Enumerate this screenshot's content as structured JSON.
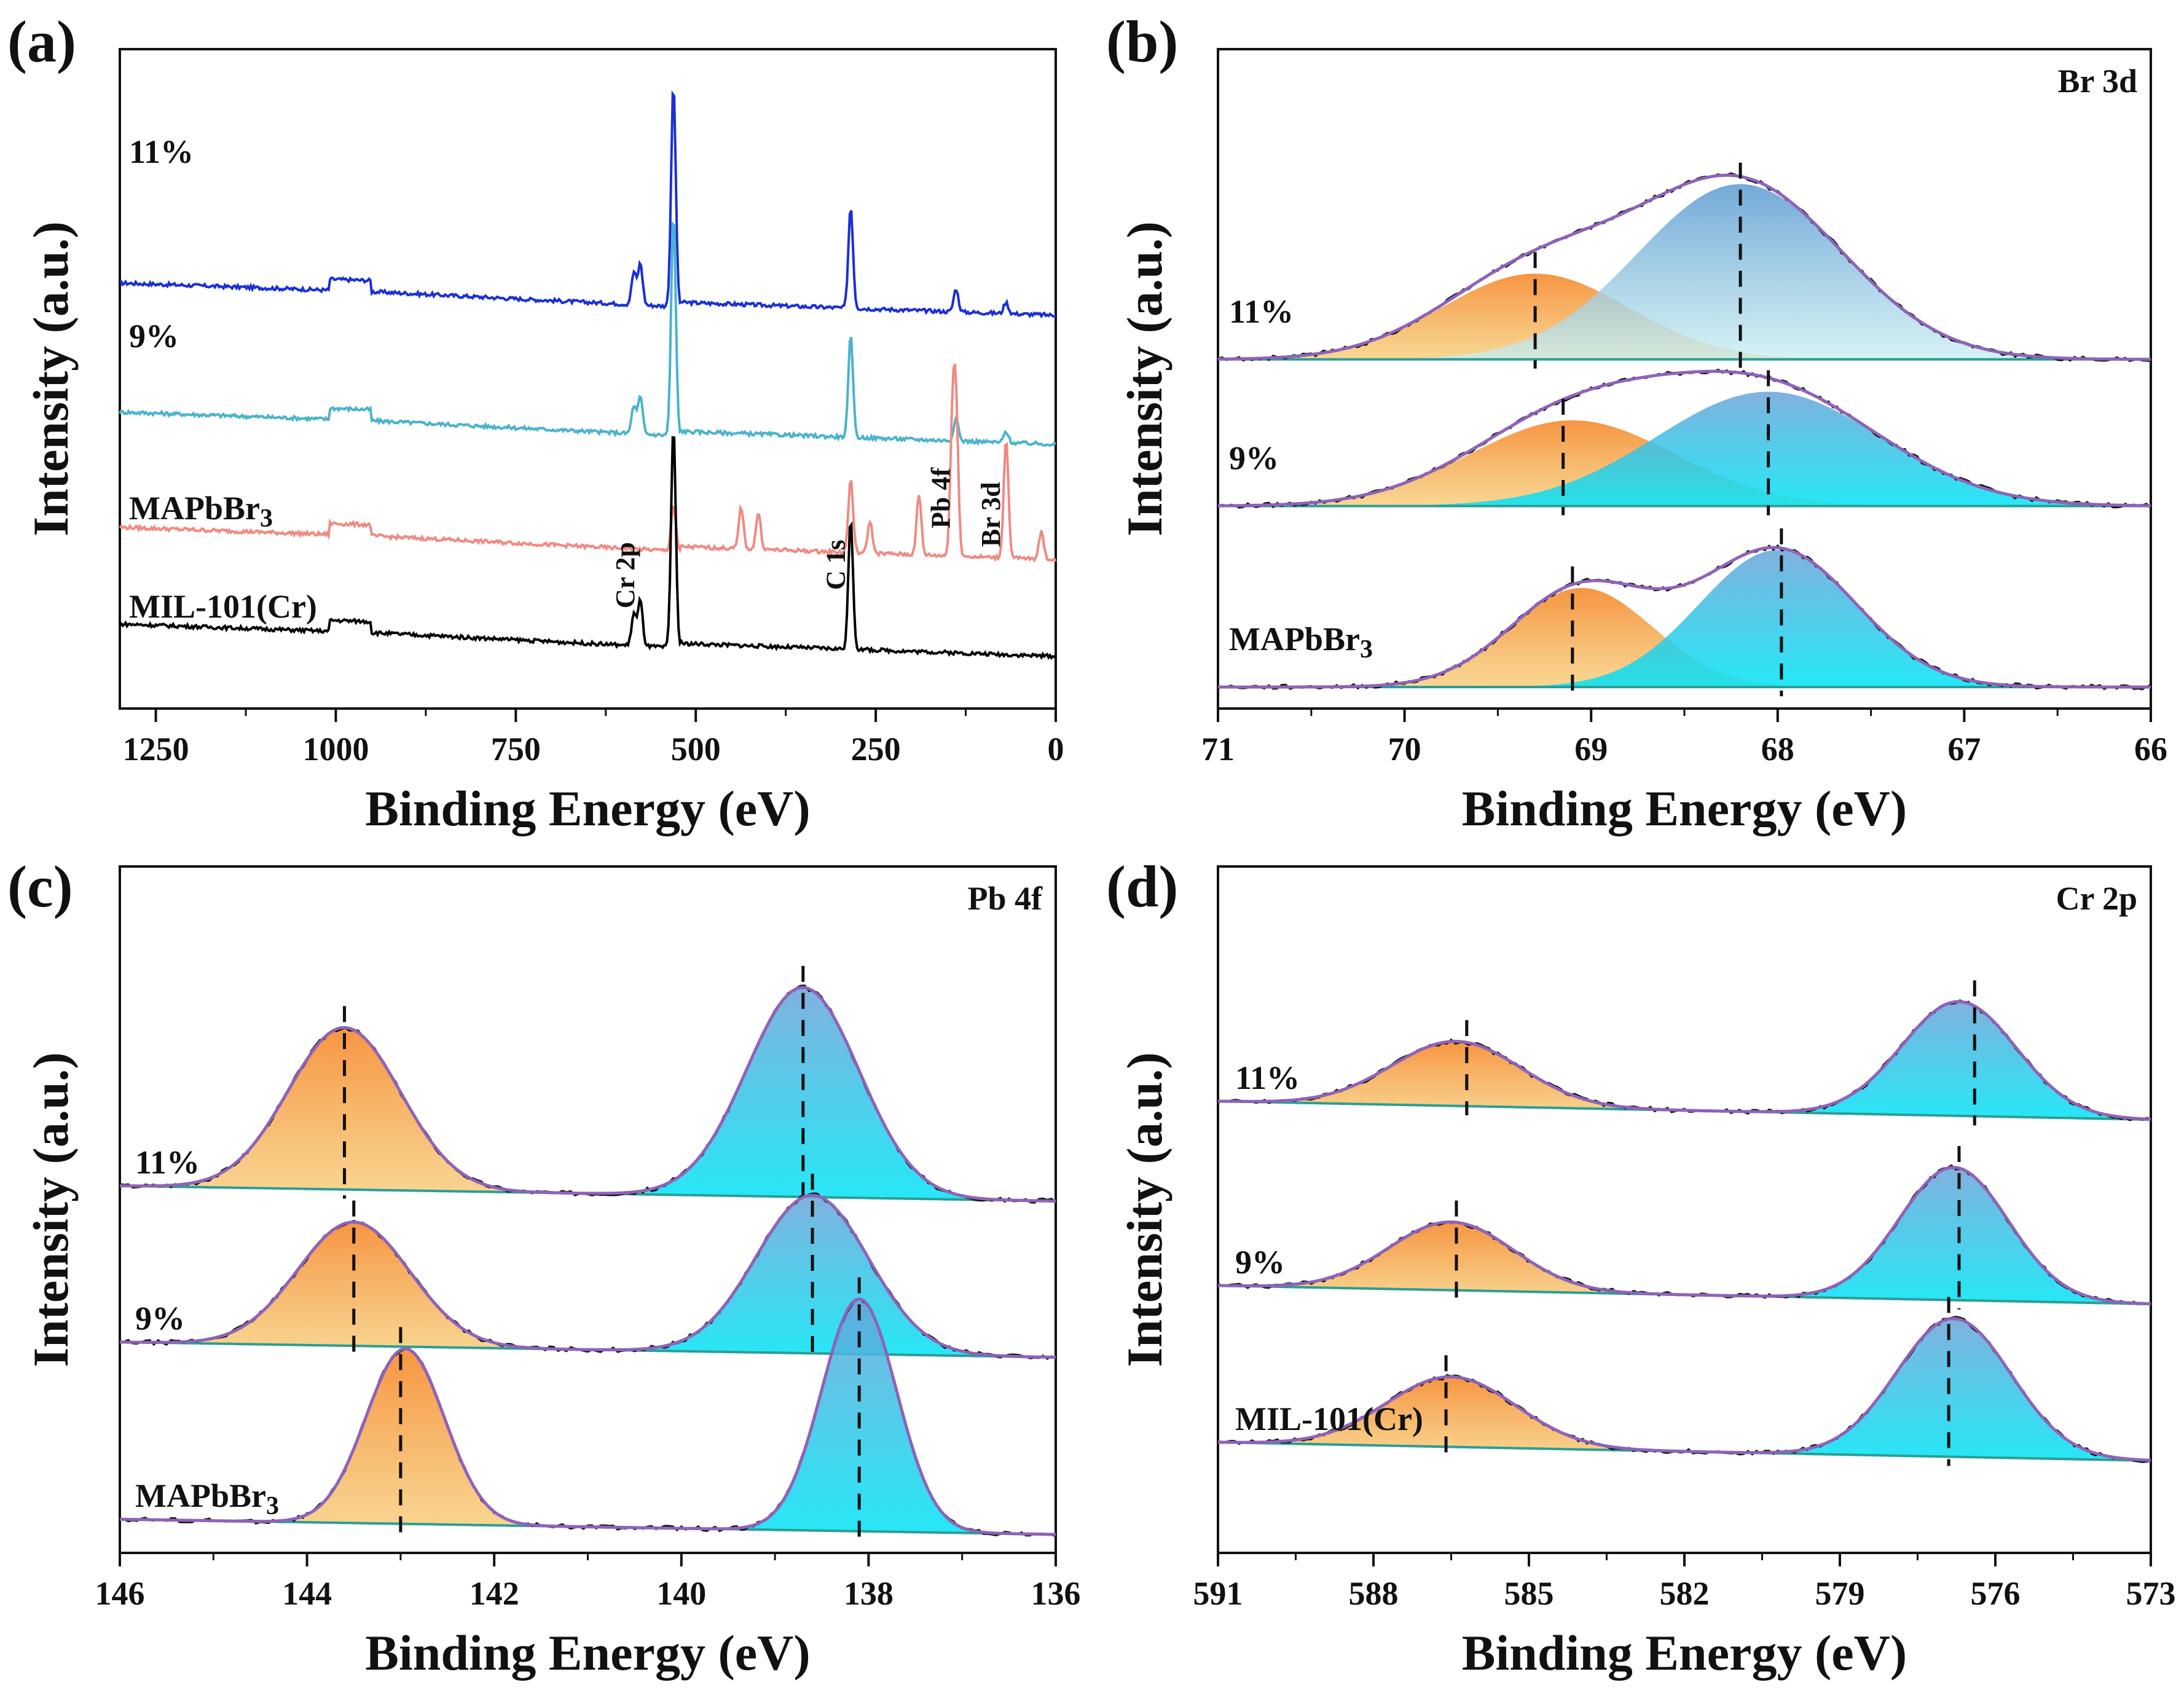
{
  "colors": {
    "orange_fill": "#f28a1c",
    "blue_fill": "#6aa7d6",
    "cyan_fill": "#12d7ee",
    "envelope": "#8e63b8",
    "baseline": "#2b9e94",
    "raw": "#101010",
    "survey_11": "#1a2fd6",
    "survey_9": "#4ab3cc",
    "survey_mapbbr3": "#ef8a82",
    "survey_mil": "#000000"
  },
  "chart_data": [
    {
      "panel": "(a)",
      "type": "line",
      "xlabel": "Binding Energy (eV)",
      "ylabel": "Intensity (a.u.)",
      "xlim": [
        1300,
        0
      ],
      "xticks": [
        "1250",
        "1000",
        "750",
        "500",
        "250",
        "0"
      ],
      "xtick_values": [
        1250,
        1000,
        750,
        500,
        250,
        0
      ],
      "series": [
        {
          "name": "11%",
          "color_key": "survey_11",
          "offset": 3.7,
          "peaks": [
            {
              "be": 531,
              "h": 2.4
            },
            {
              "be": 577,
              "h": 0.45
            },
            {
              "be": 586,
              "h": 0.35
            },
            {
              "be": 284.8,
              "h": 1.1
            },
            {
              "be": 138.5,
              "h": 0.25
            },
            {
              "be": 69,
              "h": 0.12
            }
          ]
        },
        {
          "name": "9%",
          "color_key": "survey_9",
          "offset": 2.3,
          "peaks": [
            {
              "be": 531,
              "h": 2.4
            },
            {
              "be": 577,
              "h": 0.4
            },
            {
              "be": 586,
              "h": 0.3
            },
            {
              "be": 284.8,
              "h": 1.1
            },
            {
              "be": 138.5,
              "h": 0.25
            },
            {
              "be": 69,
              "h": 0.12
            }
          ]
        },
        {
          "name": "MAPbBr3",
          "color_key": "survey_mapbbr3",
          "offset": 1.05,
          "peaks": [
            {
              "be": 531,
              "h": 0.5
            },
            {
              "be": 437,
              "h": 0.45
            },
            {
              "be": 413,
              "h": 0.4
            },
            {
              "be": 284.8,
              "h": 0.8
            },
            {
              "be": 258,
              "h": 0.35
            },
            {
              "be": 190,
              "h": 0.65
            },
            {
              "be": 143.5,
              "h": 1.35
            },
            {
              "be": 138.5,
              "h": 1.5
            },
            {
              "be": 69,
              "h": 1.3
            },
            {
              "be": 20,
              "h": 0.3
            }
          ]
        },
        {
          "name": "MIL-101(Cr)",
          "color_key": "survey_mil",
          "offset": 0,
          "peaks": [
            {
              "be": 531,
              "h": 2.4
            },
            {
              "be": 577,
              "h": 0.5
            },
            {
              "be": 586,
              "h": 0.35
            },
            {
              "be": 284.8,
              "h": 1.4
            }
          ]
        }
      ],
      "annotations": [
        {
          "text": "Cr 2p",
          "be": 577
        },
        {
          "text": "C 1s",
          "be": 284.8
        },
        {
          "text": "Pb 4f",
          "be": 138.5
        },
        {
          "text": "Br 3d",
          "be": 69
        }
      ],
      "sample_labels": [
        "11%",
        "9%",
        "MAPbBr3",
        "MIL-101(Cr)"
      ]
    },
    {
      "panel": "(b)",
      "type": "area",
      "title": "Br 3d",
      "xlabel": "Binding Energy (eV)",
      "ylabel": "Intensity (a.u.)",
      "xlim": [
        71,
        66
      ],
      "xticks": [
        "71",
        "70",
        "69",
        "68",
        "67",
        "66"
      ],
      "xtick_values": [
        71,
        70,
        69,
        68,
        67,
        66
      ],
      "series": [
        {
          "name": "11%",
          "offset": 1.72,
          "components": [
            {
              "center": 69.3,
              "amp": 0.45,
              "sigma": 0.5,
              "color_key": "orange_fill"
            },
            {
              "center": 68.2,
              "amp": 0.92,
              "sigma": 0.55,
              "color_key": "blue_fill"
            }
          ],
          "dashes": [
            69.3,
            68.2
          ]
        },
        {
          "name": "9%",
          "offset": 0.95,
          "components": [
            {
              "center": 69.1,
              "amp": 0.45,
              "sigma": 0.55,
              "color_key": "orange_fill"
            },
            {
              "center": 68.05,
              "amp": 0.6,
              "sigma": 0.6,
              "color_key": "cyan_fill"
            }
          ],
          "dashes": [
            69.15,
            68.05
          ]
        },
        {
          "name": "MAPbBr3",
          "offset": 0,
          "components": [
            {
              "center": 69.05,
              "amp": 0.52,
              "sigma": 0.38,
              "color_key": "orange_fill"
            },
            {
              "center": 68.0,
              "amp": 0.72,
              "sigma": 0.42,
              "color_key": "cyan_fill"
            }
          ],
          "dashes": [
            69.1,
            67.98
          ]
        }
      ]
    },
    {
      "panel": "(c)",
      "type": "area",
      "title": "Pb 4f",
      "xlabel": "Binding Energy (eV)",
      "ylabel": "Intensity (a.u.)",
      "xlim": [
        146,
        136
      ],
      "xticks": [
        "146",
        "144",
        "142",
        "140",
        "138",
        "136"
      ],
      "xtick_values": [
        146,
        144,
        142,
        140,
        138,
        136
      ],
      "series": [
        {
          "name": "11%",
          "offset": 1.75,
          "components": [
            {
              "center": 143.6,
              "amp": 0.85,
              "sigma": 0.6,
              "color_key": "orange_fill"
            },
            {
              "center": 138.7,
              "amp": 1.1,
              "sigma": 0.6,
              "color_key": "cyan_fill"
            }
          ],
          "dashes": [
            143.6,
            138.7
          ]
        },
        {
          "name": "9%",
          "offset": 0.93,
          "components": [
            {
              "center": 143.5,
              "amp": 0.65,
              "sigma": 0.6,
              "color_key": "orange_fill"
            },
            {
              "center": 138.6,
              "amp": 0.83,
              "sigma": 0.6,
              "color_key": "cyan_fill"
            }
          ],
          "dashes": [
            143.5,
            138.6
          ]
        },
        {
          "name": "MAPbBr3",
          "offset": 0,
          "components": [
            {
              "center": 142.95,
              "amp": 0.92,
              "sigma": 0.42,
              "color_key": "orange_fill"
            },
            {
              "center": 138.1,
              "amp": 1.22,
              "sigma": 0.4,
              "color_key": "cyan_fill"
            }
          ],
          "dashes": [
            143.0,
            138.1
          ]
        }
      ]
    },
    {
      "panel": "(d)",
      "type": "area",
      "title": "Cr 2p",
      "xlabel": "Binding Energy (eV)",
      "ylabel": "Intensity (a.u.)",
      "xlim": [
        591,
        573
      ],
      "xticks": [
        "591",
        "588",
        "585",
        "582",
        "579",
        "576",
        "573"
      ],
      "xtick_values": [
        591,
        588,
        585,
        582,
        579,
        576,
        573
      ],
      "series": [
        {
          "name": "11%",
          "offset": 1.85,
          "components": [
            {
              "center": 586.4,
              "amp": 0.35,
              "sigma": 1.25,
              "color_key": "orange_fill"
            },
            {
              "center": 576.7,
              "amp": 0.62,
              "sigma": 1.1,
              "color_key": "cyan_fill"
            }
          ],
          "dashes": [
            586.2,
            576.4
          ]
        },
        {
          "name": "9%",
          "offset": 0.85,
          "components": [
            {
              "center": 586.5,
              "amp": 0.37,
              "sigma": 1.2,
              "color_key": "orange_fill"
            },
            {
              "center": 576.8,
              "amp": 0.72,
              "sigma": 1.05,
              "color_key": "cyan_fill"
            }
          ],
          "dashes": [
            586.4,
            576.7
          ]
        },
        {
          "name": "MIL-101(Cr)",
          "offset": 0,
          "components": [
            {
              "center": 586.5,
              "amp": 0.38,
              "sigma": 1.25,
              "color_key": "orange_fill"
            },
            {
              "center": 576.8,
              "amp": 0.75,
              "sigma": 1.1,
              "color_key": "cyan_fill"
            }
          ],
          "dashes": [
            586.6,
            576.9
          ]
        }
      ]
    }
  ]
}
